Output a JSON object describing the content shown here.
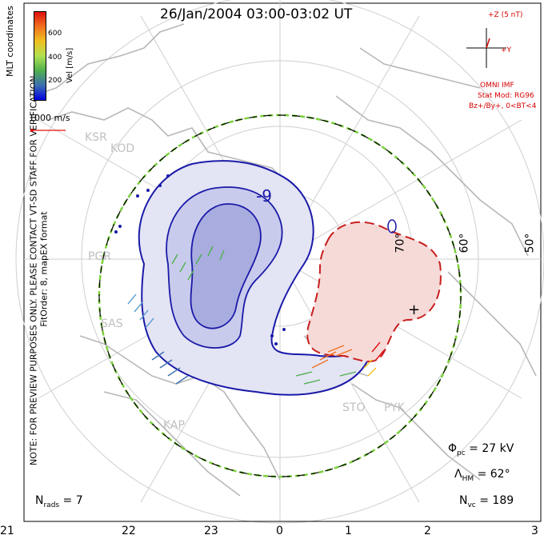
{
  "title": "26/Jan/2004  03:00-03:02  UT",
  "side_note": "NOTE: FOR PREVIEW PURPOSES ONLY. PLEASE CONTACT VT-SD STAFF FOR VERIFICATION.",
  "side_note2": "FitOrder: 8,  mapEX format",
  "coord_label": "MLT coordinates",
  "velocity_scale": {
    "unit_label": "Vel [m/s]",
    "ticks": [
      "200",
      "400",
      "600"
    ],
    "colors": [
      "#0000e0",
      "#3b6fb0",
      "#4fb04f",
      "#b0e050",
      "#f0c020",
      "#f07020",
      "#e01010"
    ],
    "reference_label": "1000 m/s"
  },
  "imf": {
    "z_label": "+Z (5 nT)",
    "y_label": "+Y",
    "source": "OMNI IMF",
    "model": "Stat Mod: RG96",
    "condition": "Bz+/By+, 0<BT<4"
  },
  "stats": {
    "phi_pc": "27 kV",
    "lambda_hm": "62°",
    "n_vc": "189",
    "n_rads": "7"
  },
  "mlt_ticks": [
    "21",
    "22",
    "23",
    "0",
    "1",
    "2",
    "3"
  ],
  "lat_labels": [
    "70°",
    "60°",
    "50°"
  ],
  "stations": [
    "KSR",
    "KOD",
    "PGR",
    "SAS",
    "KAP",
    "STO",
    "PYK"
  ],
  "contour_label": "-9",
  "colors": {
    "negative_cell": "#1a1aa8",
    "positive_cell": "#c81e1e",
    "grid": "#cccccc",
    "coast": "#b4b4b4",
    "boundary": "#7bd13c"
  }
}
